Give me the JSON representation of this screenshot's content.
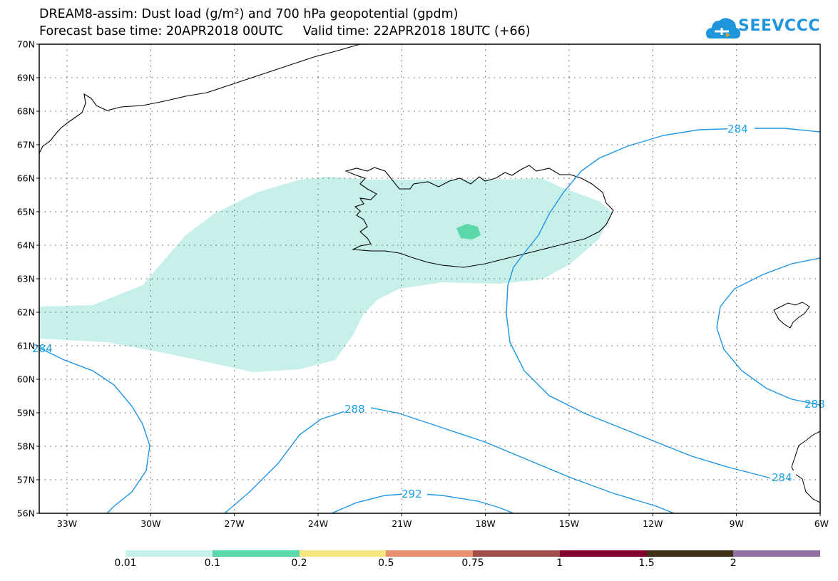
{
  "header": {
    "title_line1": "DREAM8-assim: Dust load (g/m²) and 700 hPa geopotential (gpdm)",
    "forecast_base": "Forecast base time: 20APR2018 00UTC",
    "valid_time": "Valid time: 22APR2018 18UTC (+66)"
  },
  "logo": {
    "text": "SEEVCCC",
    "color": "#1f96dc"
  },
  "map": {
    "lat_labels": [
      "70N",
      "69N",
      "68N",
      "67N",
      "66N",
      "65N",
      "64N",
      "63N",
      "62N",
      "61N",
      "60N",
      "59N",
      "58N",
      "57N",
      "56N"
    ],
    "lon_labels": [
      "33W",
      "30W",
      "27W",
      "24W",
      "21W",
      "18W",
      "15W",
      "12W",
      "9W",
      "6W"
    ],
    "contour_labels": {
      "c284_top": "284",
      "c284_left": "284",
      "c288_mid": "288",
      "c288_right": "288",
      "c284_right": "284",
      "c292": "292"
    },
    "colors": {
      "contour": "#1e96e6",
      "dust_low": "#c8f0ea",
      "dust_mid": "#5ad8aa",
      "coast": "#000000"
    }
  },
  "colorbar": {
    "labels": [
      "0.01",
      "0.1",
      "0.2",
      "0.5",
      "0.75",
      "1",
      "1.5",
      "2"
    ],
    "colors": [
      "#c8f0ea",
      "#5ad8aa",
      "#f5e682",
      "#e89070",
      "#a05048",
      "#800030",
      "#403018",
      "#9070a0"
    ]
  }
}
